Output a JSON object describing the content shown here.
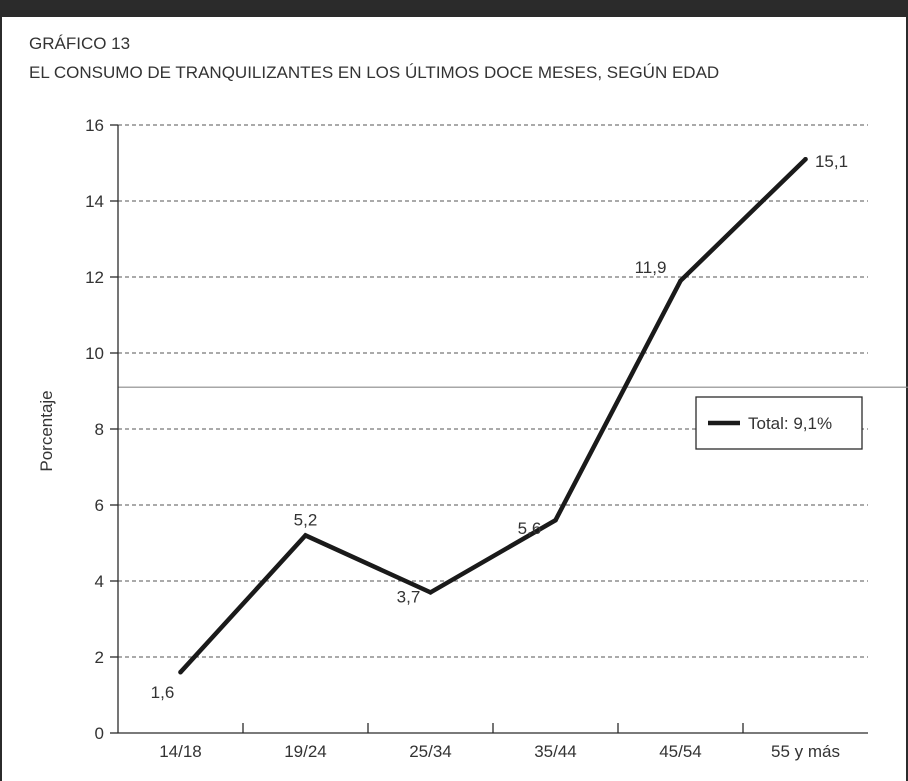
{
  "header": {
    "figure_label": "GRÁFICO 13",
    "title": "EL CONSUMO DE TRANQUILIZANTES EN LOS ÚLTIMOS DOCE MESES, SEGÚN EDAD"
  },
  "chart_data": {
    "type": "line",
    "categories": [
      "14/18",
      "19/24",
      "25/34",
      "35/44",
      "45/54",
      "55 y más"
    ],
    "series": [
      {
        "name": "",
        "values": [
          1.6,
          5.2,
          3.7,
          5.6,
          11.9,
          15.1
        ]
      }
    ],
    "data_labels": [
      "1,6",
      "5,2",
      "3,7",
      "5,6",
      "11,9",
      "15,1"
    ],
    "xlabel": "",
    "ylabel": "Porcentaje",
    "ylim": [
      0,
      16
    ],
    "yticks": [
      0,
      2,
      4,
      6,
      8,
      10,
      12,
      14,
      16
    ],
    "ytick_labels": [
      "0",
      "2",
      "4",
      "6",
      "8",
      "10",
      "12",
      "14",
      "16"
    ],
    "grid": "horizontal dashed",
    "reference_line": {
      "value": 9.1,
      "label": "Total: 9,1%"
    },
    "legend_position": "right",
    "colors": {
      "line": "#1a1a1a",
      "grid": "#555555",
      "reference": "#8a8a8a",
      "frame": "#2b2b2b"
    }
  }
}
